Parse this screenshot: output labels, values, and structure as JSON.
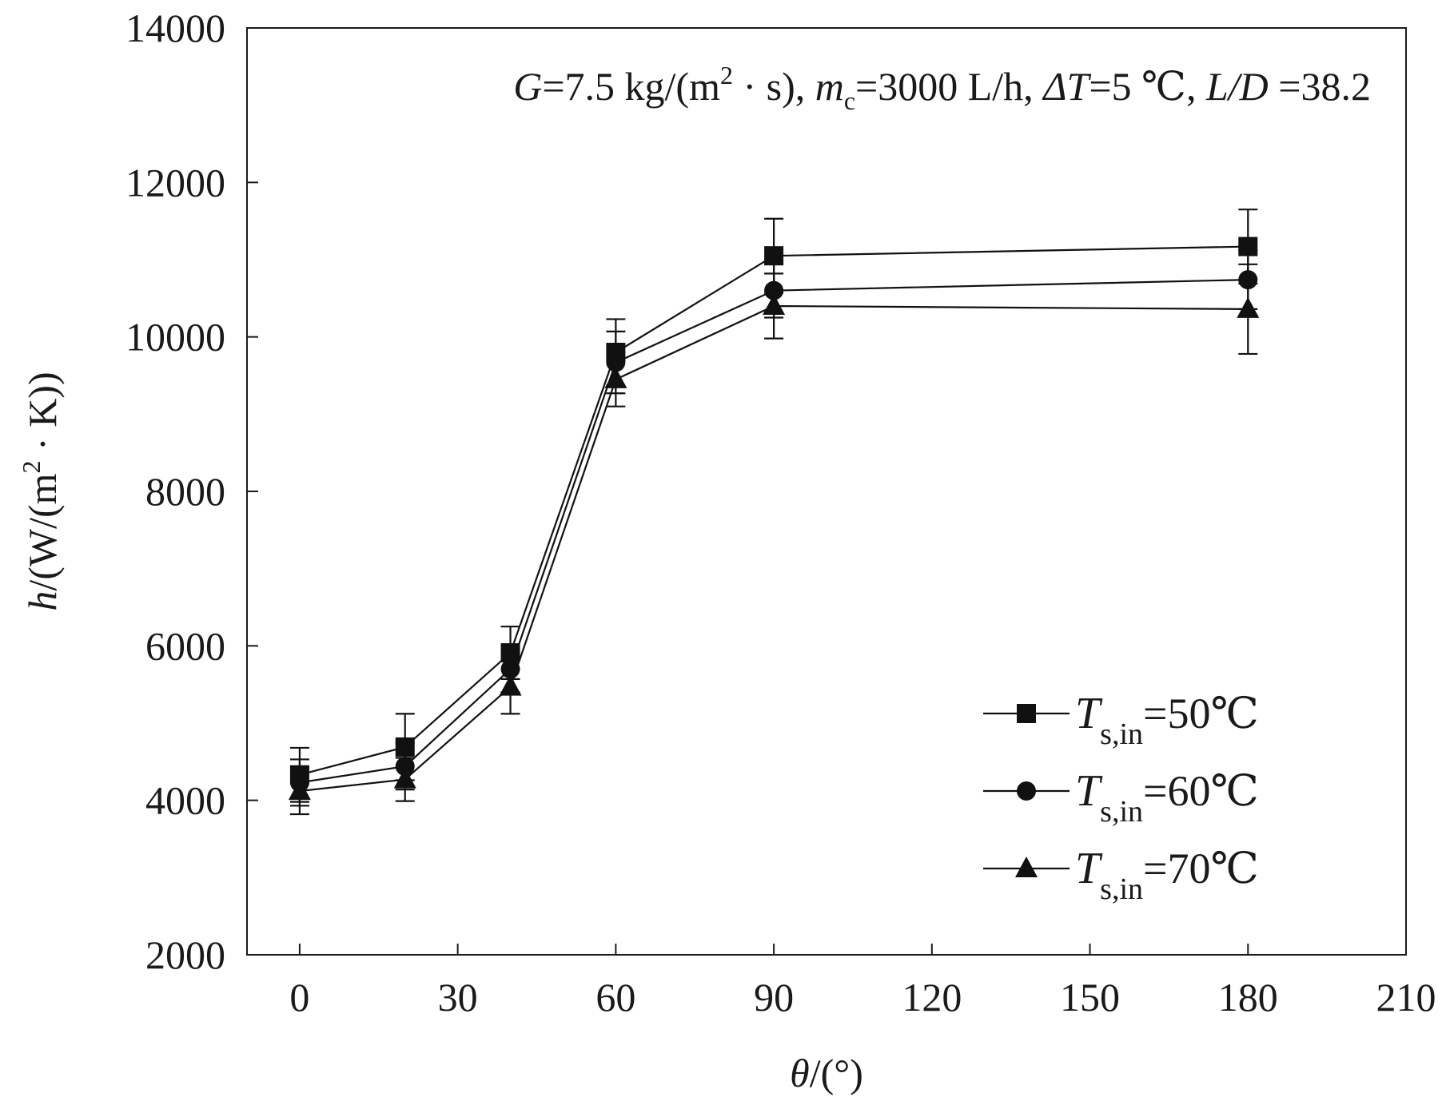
{
  "chart_data": {
    "type": "line",
    "title": "",
    "annotation": {
      "G_sym": "G",
      "G_val": "=7.5 kg/(m",
      "G_sup": "2",
      "G_rest": " · s), ",
      "m_sym": "m",
      "m_sub": "c",
      "m_val": "=3000 L/h, ",
      "dT_sym": "ΔT",
      "dT_val": "=5 ℃, ",
      "LD_sym": "L/D",
      "LD_val": " =38.2"
    },
    "xlabel": {
      "sym": "θ",
      "rest": "/(°)"
    },
    "ylabel": {
      "sym": "h",
      "rest": "/(W/(m",
      "sup": "2",
      "rest2": " · K))"
    },
    "xlim": [
      -10,
      210
    ],
    "ylim": [
      2000,
      14000
    ],
    "xticks": [
      0,
      30,
      60,
      90,
      120,
      150,
      180,
      210
    ],
    "yticks": [
      2000,
      4000,
      6000,
      8000,
      10000,
      12000,
      14000
    ],
    "grid": false,
    "legend_position": "bottom-right",
    "x": [
      0,
      20,
      40,
      60,
      90,
      180
    ],
    "series": [
      {
        "name": "T",
        "sub": "s,in",
        "suffix": "=50℃",
        "marker": "square",
        "values": [
          4330,
          4690,
          5910,
          9800,
          11050,
          11170
        ],
        "errors": [
          350,
          430,
          340,
          430,
          480,
          480
        ]
      },
      {
        "name": "T",
        "sub": "s,in",
        "suffix": "=60℃",
        "marker": "circle",
        "values": [
          4230,
          4440,
          5700,
          9670,
          10600,
          10740
        ],
        "errors": [
          300,
          300,
          300,
          400,
          350,
          380
        ]
      },
      {
        "name": "T",
        "sub": "s,in",
        "suffix": "=70℃",
        "marker": "triangle",
        "values": [
          4120,
          4270,
          5470,
          9450,
          10400,
          10360
        ],
        "errors": [
          300,
          280,
          350,
          350,
          420,
          580
        ]
      }
    ]
  }
}
